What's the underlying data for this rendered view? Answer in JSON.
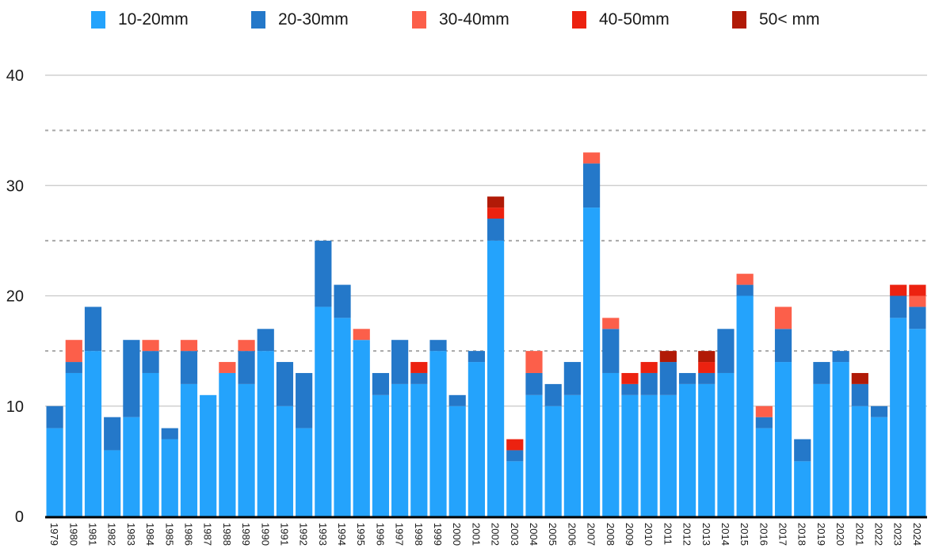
{
  "chart_data": {
    "type": "bar",
    "stacked": true,
    "title": "",
    "xlabel": "",
    "ylabel": "",
    "ylim": [
      0,
      40
    ],
    "yticks": [
      0,
      10,
      20,
      30,
      40
    ],
    "minor_gridlines": [
      15,
      25,
      35
    ],
    "grid": true,
    "legend_position": "top",
    "categories": [
      "1979",
      "1980",
      "1981",
      "1982",
      "1983",
      "1984",
      "1985",
      "1986",
      "1987",
      "1988",
      "1989",
      "1990",
      "1991",
      "1992",
      "1993",
      "1994",
      "1995",
      "1996",
      "1997",
      "1998",
      "1999",
      "2000",
      "2001",
      "2002",
      "2003",
      "2004",
      "2005",
      "2006",
      "2007",
      "2008",
      "2009",
      "2010",
      "2011",
      "2012",
      "2013",
      "2014",
      "2015",
      "2016",
      "2017",
      "2018",
      "2019",
      "2020",
      "2021",
      "2022",
      "2023",
      "2024"
    ],
    "series": [
      {
        "name": "10-20mm",
        "color": "#24a3fc",
        "values": [
          8,
          13,
          15,
          6,
          9,
          13,
          7,
          12,
          11,
          13,
          12,
          15,
          10,
          8,
          19,
          18,
          16,
          11,
          12,
          12,
          15,
          10,
          14,
          25,
          5,
          11,
          10,
          11,
          28,
          13,
          11,
          11,
          11,
          12,
          12,
          13,
          20,
          8,
          14,
          5,
          12,
          14,
          10,
          9,
          18,
          17
        ]
      },
      {
        "name": "20-30mm",
        "color": "#2478c9",
        "values": [
          2,
          1,
          4,
          3,
          7,
          2,
          1,
          3,
          0,
          0,
          3,
          2,
          4,
          5,
          6,
          3,
          0,
          2,
          4,
          1,
          1,
          1,
          1,
          2,
          1,
          2,
          2,
          3,
          4,
          4,
          1,
          2,
          3,
          1,
          1,
          4,
          1,
          1,
          3,
          2,
          2,
          1,
          2,
          1,
          2,
          2
        ]
      },
      {
        "name": "30-40mm",
        "color": "#fc5f4a",
        "values": [
          0,
          2,
          0,
          0,
          0,
          1,
          0,
          1,
          0,
          1,
          1,
          0,
          0,
          0,
          0,
          0,
          1,
          0,
          0,
          0,
          0,
          0,
          0,
          0,
          0,
          2,
          0,
          0,
          1,
          1,
          0,
          0,
          0,
          0,
          0,
          0,
          1,
          1,
          2,
          0,
          0,
          0,
          0,
          0,
          0,
          1
        ]
      },
      {
        "name": "40-50mm",
        "color": "#ec2210",
        "values": [
          0,
          0,
          0,
          0,
          0,
          0,
          0,
          0,
          0,
          0,
          0,
          0,
          0,
          0,
          0,
          0,
          0,
          0,
          0,
          1,
          0,
          0,
          0,
          1,
          1,
          0,
          0,
          0,
          0,
          0,
          1,
          1,
          0,
          0,
          1,
          0,
          0,
          0,
          0,
          0,
          0,
          0,
          0,
          0,
          1,
          1
        ]
      },
      {
        "name": "50< mm",
        "color": "#b11a07",
        "values": [
          0,
          0,
          0,
          0,
          0,
          0,
          0,
          0,
          0,
          0,
          0,
          0,
          0,
          0,
          0,
          0,
          0,
          0,
          0,
          0,
          0,
          0,
          0,
          1,
          0,
          0,
          0,
          0,
          0,
          0,
          0,
          0,
          1,
          0,
          1,
          0,
          0,
          0,
          0,
          0,
          0,
          0,
          1,
          0,
          0,
          0
        ]
      }
    ]
  }
}
